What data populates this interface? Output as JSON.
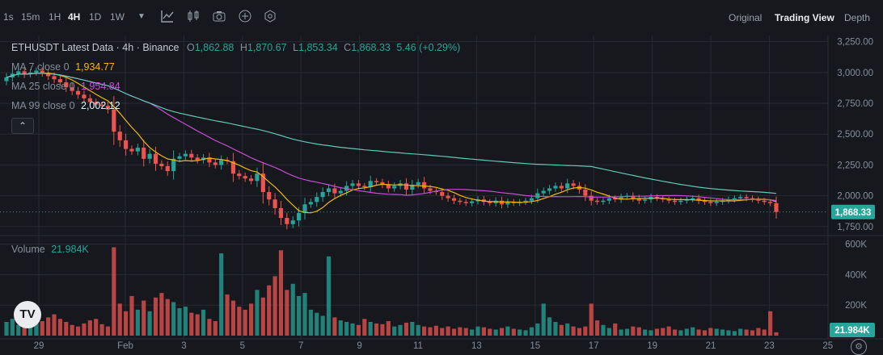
{
  "toolbar": {
    "timeframes": [
      "1s",
      "15m",
      "1H",
      "4H",
      "1D",
      "1W"
    ],
    "active_timeframe": "4H",
    "views": [
      "Original",
      "Trading View",
      "Depth"
    ],
    "active_view": "Trading View"
  },
  "legend": {
    "symbol_line": "ETHUSDT Latest Data · 4h · Binance",
    "open_label": "O",
    "open": "1,862.88",
    "high_label": "H",
    "high": "1,870.67",
    "low_label": "L",
    "low": "1,853.34",
    "close_label": "C",
    "close": "1,868.33",
    "change": "5.46 (+0.29%)",
    "ma7_label": "MA 7 close 0",
    "ma7_value": "1,934.77",
    "ma25_label": "MA 25 close 0",
    "ma25_value": "1,954.84",
    "ma99_label": "MA 99 close 0",
    "ma99_value": "2,002.12",
    "volume_label": "Volume",
    "volume_value": "21.984K"
  },
  "colors": {
    "up": "#26a69a",
    "down": "#ef5350",
    "ma7": "#f0b90b",
    "ma25": "#c74cd6",
    "ma99": "#5fc8b5",
    "background": "#16181d",
    "grid": "#262a31"
  },
  "chart_data": {
    "type": "candlestick",
    "price_axis_ticks": [
      "3,250.00",
      "3,000.00",
      "2,750.00",
      "2,500.00",
      "2,250.00",
      "2,000.00",
      "1,750.00"
    ],
    "price_ylim": [
      1690,
      3300
    ],
    "volume_axis_ticks": [
      "600K",
      "400K",
      "200K"
    ],
    "volume_ylim": [
      0,
      630000
    ],
    "x_ticks": [
      "29",
      "Feb",
      "3",
      "5",
      "7",
      "9",
      "11",
      "13",
      "15",
      "17",
      "19",
      "21",
      "23",
      "25"
    ],
    "last_price_label": "1,868.33",
    "last_volume_label": "21.984K",
    "closes": [
      2960,
      2990,
      3010,
      2985,
      3000,
      3015,
      2995,
      2970,
      2945,
      2920,
      2880,
      2850,
      2820,
      2790,
      2760,
      2740,
      2730,
      2700,
      2520,
      2450,
      2380,
      2360,
      2390,
      2300,
      2340,
      2260,
      2240,
      2200,
      2300,
      2320,
      2340,
      2310,
      2290,
      2310,
      2270,
      2250,
      2290,
      2280,
      2180,
      2160,
      2140,
      2120,
      2180,
      2030,
      1970,
      1900,
      1820,
      1770,
      1800,
      1860,
      1930,
      1950,
      1990,
      2030,
      2060,
      2020,
      2040,
      2080,
      2100,
      2080,
      2070,
      2120,
      2110,
      2090,
      2060,
      2080,
      2100,
      2050,
      2090,
      2110,
      2060,
      2040,
      2030,
      2000,
      1980,
      1960,
      1950,
      1940,
      1955,
      1970,
      1950,
      1940,
      1960,
      1930,
      1950,
      1940,
      1950,
      1960,
      1980,
      2020,
      2040,
      2060,
      2080,
      2060,
      2100,
      2080,
      2050,
      2000,
      1960,
      1950,
      1960,
      1980,
      1970,
      1990,
      2000,
      1980,
      1960,
      1970,
      1990,
      1980,
      1970,
      1960,
      1950,
      1960,
      1970,
      1980,
      1960,
      1950,
      1940,
      1950,
      1960,
      1970,
      1980,
      1990,
      1980,
      1970,
      1960,
      1950,
      1940,
      1868.33
    ],
    "volumes_k": [
      90,
      110,
      70,
      130,
      60,
      80,
      95,
      120,
      140,
      110,
      90,
      70,
      60,
      80,
      100,
      110,
      75,
      60,
      580,
      210,
      160,
      260,
      170,
      230,
      160,
      250,
      280,
      240,
      220,
      180,
      190,
      150,
      140,
      170,
      110,
      95,
      540,
      270,
      230,
      190,
      170,
      210,
      300,
      250,
      330,
      390,
      560,
      300,
      340,
      260,
      280,
      170,
      150,
      130,
      520,
      120,
      100,
      90,
      80,
      70,
      110,
      90,
      80,
      75,
      95,
      60,
      70,
      85,
      90,
      70,
      60,
      55,
      65,
      50,
      60,
      45,
      55,
      50,
      40,
      60,
      55,
      45,
      40,
      50,
      60,
      45,
      40,
      35,
      55,
      80,
      210,
      120,
      90,
      70,
      80,
      60,
      50,
      60,
      210,
      100,
      70,
      50,
      80,
      40,
      45,
      60,
      55,
      40,
      35,
      45,
      50,
      60,
      40,
      35,
      45,
      55,
      40,
      35,
      50,
      45,
      40,
      35,
      30,
      45,
      40,
      35,
      50,
      40,
      160,
      22
    ]
  }
}
